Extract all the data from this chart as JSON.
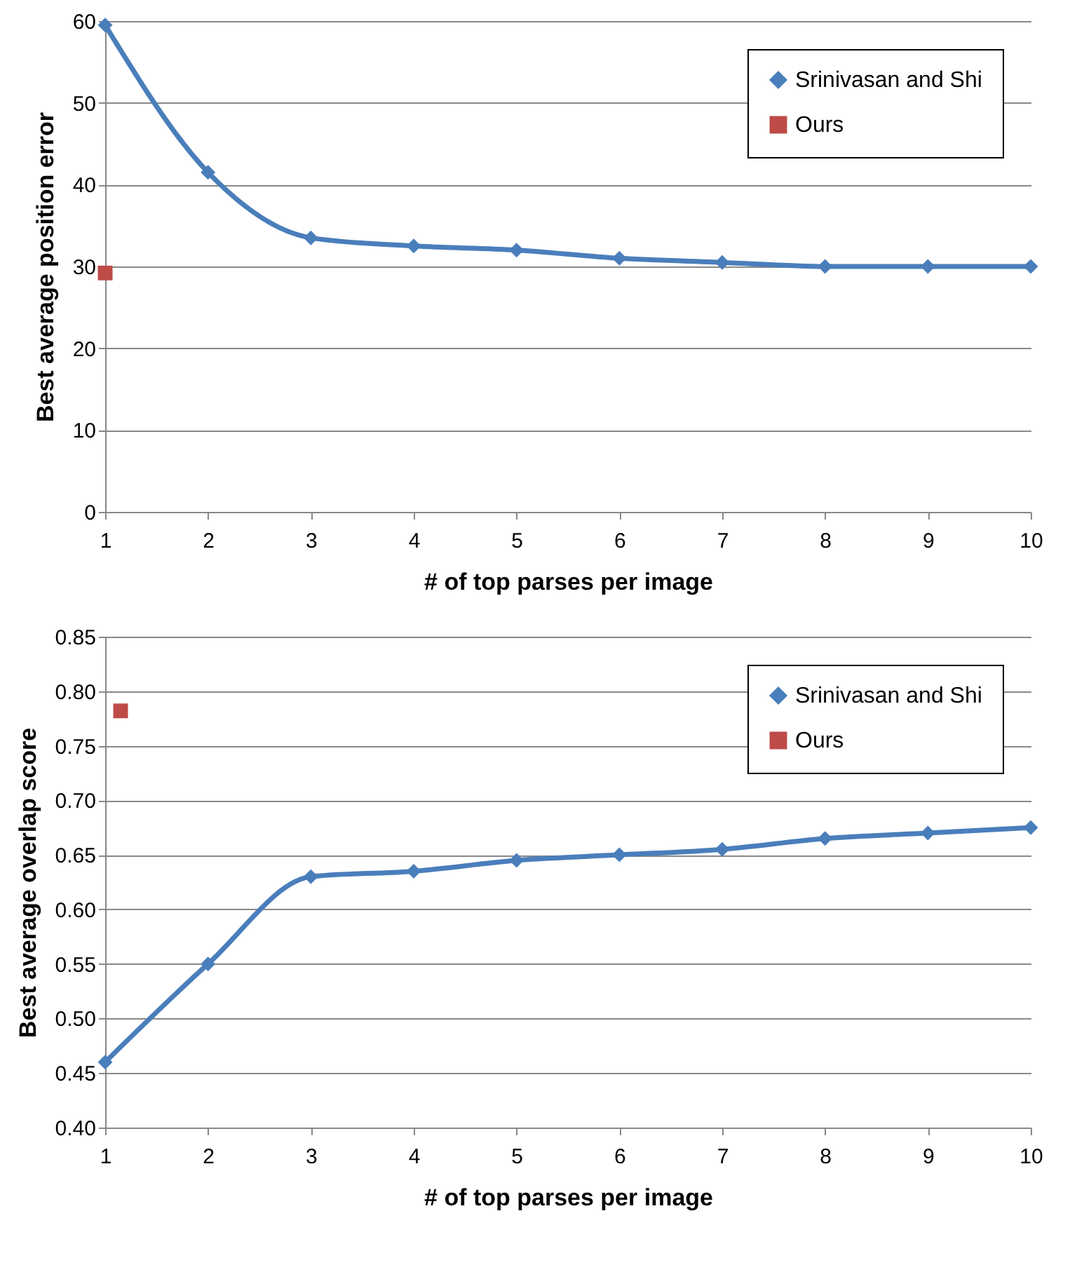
{
  "chart_data": [
    {
      "type": "line",
      "xlabel": "# of top parses per image",
      "ylabel": "Best average position error",
      "xlim": [
        1,
        10
      ],
      "xticks": [
        1,
        2,
        3,
        4,
        5,
        6,
        7,
        8,
        9,
        10
      ],
      "ylim": [
        0,
        60
      ],
      "yticks": [
        0,
        10,
        20,
        30,
        40,
        50,
        60
      ],
      "grid": "y",
      "legend": "top right",
      "line_style": "solid",
      "series": [
        {
          "name": "Srinivasan and Shi",
          "color": "#4a7ebb",
          "marker": "diamond",
          "x": [
            1,
            2,
            3,
            4,
            5,
            6,
            7,
            8,
            9,
            10
          ],
          "values": [
            59.5,
            41.5,
            33.5,
            32.5,
            32,
            31,
            30.5,
            30,
            30,
            30
          ]
        },
        {
          "name": "Ours",
          "type": "scatter",
          "color": "#be4b48",
          "marker": "square",
          "x": [
            1
          ],
          "values": [
            29.2
          ]
        }
      ]
    },
    {
      "type": "line",
      "xlabel": "# of top parses per image",
      "ylabel": "Best average overlap score",
      "xlim": [
        1,
        10
      ],
      "xticks": [
        1,
        2,
        3,
        4,
        5,
        6,
        7,
        8,
        9,
        10
      ],
      "ylim": [
        0.4,
        0.85
      ],
      "yticks": [
        {
          "value": 0.4,
          "label": "0.40"
        },
        {
          "value": 0.45,
          "label": "0.45"
        },
        {
          "value": 0.5,
          "label": "0.50"
        },
        {
          "value": 0.55,
          "label": "0.55"
        },
        {
          "value": 0.6,
          "label": "0.60"
        },
        {
          "value": 0.65,
          "label": "0.65"
        },
        {
          "value": 0.7,
          "label": "0.70"
        },
        {
          "value": 0.75,
          "label": "0.75"
        },
        {
          "value": 0.8,
          "label": "0.80"
        },
        {
          "value": 0.85,
          "label": "0.85"
        }
      ],
      "grid": "y",
      "legend": "top right",
      "line_style": "solid",
      "series": [
        {
          "name": "Srinivasan and Shi",
          "color": "#4a7ebb",
          "marker": "diamond",
          "x": [
            1,
            2,
            3,
            4,
            5,
            6,
            7,
            8,
            9,
            10
          ],
          "values": [
            0.46,
            0.55,
            0.63,
            0.635,
            0.645,
            0.65,
            0.655,
            0.665,
            0.67,
            0.675
          ]
        },
        {
          "name": "Ours",
          "type": "scatter",
          "color": "#be4b48",
          "marker": "square",
          "x": [
            1.15
          ],
          "values": [
            0.782
          ]
        }
      ]
    }
  ]
}
